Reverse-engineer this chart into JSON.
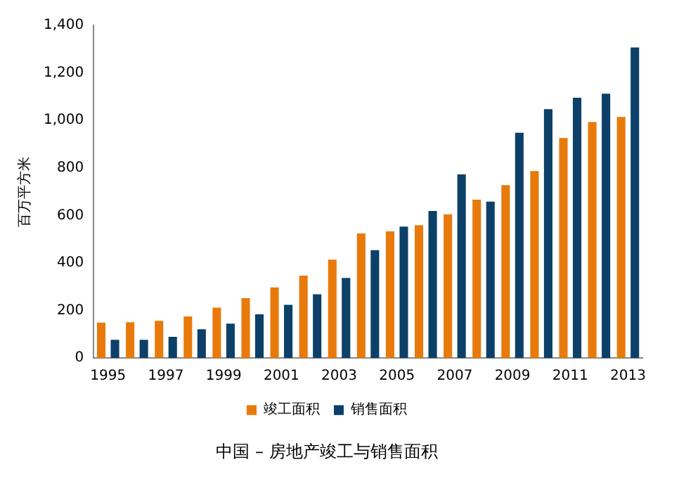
{
  "chart_data": {
    "type": "bar",
    "title": "中国 – 房地产竣工与销售面积",
    "ylabel": "百万平方米",
    "categories": [
      "1995",
      null,
      "1997",
      null,
      "1999",
      null,
      "2001",
      null,
      "2003",
      null,
      "2005",
      null,
      "2007",
      null,
      "2009",
      null,
      "2011",
      null,
      "2013"
    ],
    "series": [
      {
        "name": "竣工面积",
        "color": "#e87a0c",
        "values": [
          149,
          151,
          157,
          175,
          212,
          252,
          297,
          347,
          414,
          524,
          533,
          559,
          605,
          666,
          728,
          787,
          926,
          993,
          1015
        ]
      },
      {
        "name": "销售面积",
        "color": "#0c4068",
        "values": [
          77,
          77,
          89,
          121,
          145,
          184,
          224,
          268,
          337,
          454,
          553,
          619,
          773,
          658,
          948,
          1047,
          1095,
          1112,
          1307
        ]
      }
    ],
    "ylim": [
      0,
      1400
    ],
    "yticks": [
      0,
      200,
      400,
      600,
      800,
      {
        "value": 1000,
        "label": "1,000"
      },
      {
        "value": 1200,
        "label": "1,200"
      },
      {
        "value": 1400,
        "label": "1,400"
      }
    ],
    "grid": false,
    "legend": "bottom"
  }
}
